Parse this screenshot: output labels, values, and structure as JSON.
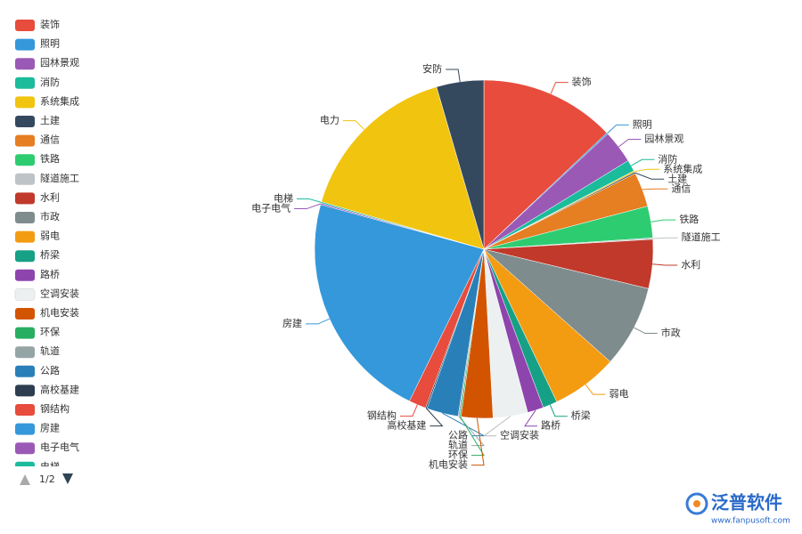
{
  "chart_data": {
    "type": "pie",
    "categories": [
      "装饰",
      "照明",
      "园林景观",
      "消防",
      "系统集成",
      "土建",
      "通信",
      "铁路",
      "隧道施工",
      "水利",
      "市政",
      "弱电",
      "桥梁",
      "路桥",
      "空调安装",
      "机电安装",
      "环保",
      "轨道",
      "公路",
      "高校基建",
      "钢结构",
      "房建",
      "电子电气",
      "电梯",
      "电力",
      "安防"
    ],
    "values": [
      47,
      0.5,
      11.5,
      4,
      0.5,
      0.5,
      12,
      11,
      0.5,
      17,
      28.5,
      23,
      5,
      5.6,
      12,
      11,
      0.5,
      0.5,
      11,
      0.5,
      6,
      80,
      0.5,
      0.5,
      58,
      16.4
    ],
    "colors": [
      "#e74c3c",
      "#3498db",
      "#9b59b6",
      "#1abc9c",
      "#f1c40f",
      "#34495e",
      "#e67e22",
      "#2ecc71",
      "#bdc3c7",
      "#c0392b",
      "#7f8c8d",
      "#f39c12",
      "#16a085",
      "#8e44ad",
      "#ecf0f1",
      "#d35400",
      "#27ae60",
      "#95a5a6",
      "#2980b9",
      "#2c3e50",
      "#e74c3c",
      "#3498db",
      "#9b59b6",
      "#1abc9c",
      "#f1c40f",
      "#34495e"
    ],
    "legend_page": "1/2"
  },
  "watermark": {
    "brand": "泛普软件",
    "url": "www.fanpusoft.com"
  }
}
